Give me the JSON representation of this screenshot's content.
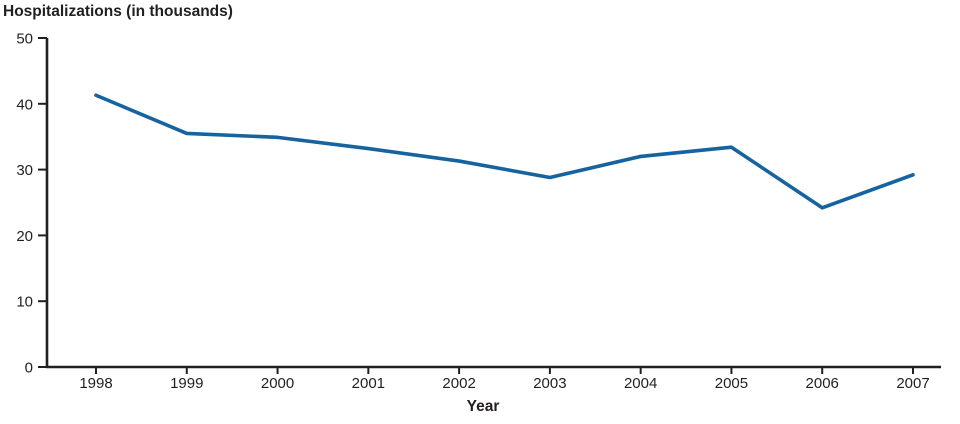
{
  "chart": {
    "title": "Hospitalizations (in thousands)",
    "xlabel": "Year"
  },
  "chart_data": {
    "type": "line",
    "title": "Hospitalizations (in thousands)",
    "xlabel": "Year",
    "ylabel": "Hospitalizations (in thousands)",
    "x": [
      1998,
      1999,
      2000,
      2001,
      2002,
      2003,
      2004,
      2005,
      2006,
      2007
    ],
    "values": [
      41.3,
      35.5,
      34.9,
      33.2,
      31.3,
      28.8,
      32.0,
      33.4,
      24.2,
      29.2
    ],
    "ylim": [
      0,
      50
    ],
    "yticks": [
      0,
      10,
      20,
      30,
      40,
      50
    ],
    "grid": false,
    "legend": "none",
    "line_color": "#15639f",
    "axis_color": "#231f20"
  }
}
